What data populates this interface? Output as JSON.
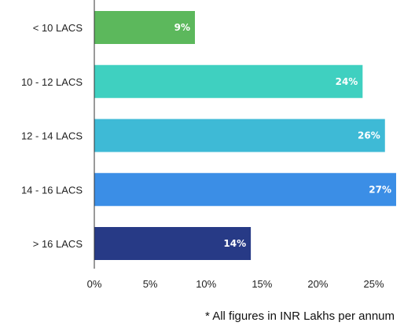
{
  "chart_data": {
    "type": "bar",
    "orientation": "horizontal",
    "categories": [
      "< 10 LACS",
      "10 - 12 LACS",
      "12 - 14 LACS",
      "14 - 16 LACS",
      "> 16 LACS"
    ],
    "values": [
      9,
      24,
      26,
      27,
      14
    ],
    "data_labels": [
      "9%",
      "24%",
      "26%",
      "27%",
      "14%"
    ],
    "colors": [
      "#5cb85c",
      "#3fd0c0",
      "#3ebad6",
      "#3b8ee6",
      "#273a86"
    ],
    "x_ticks": [
      0,
      5,
      10,
      15,
      20,
      25
    ],
    "x_tick_labels": [
      "0%",
      "5%",
      "10%",
      "15%",
      "20%",
      "25%"
    ],
    "xlim": [
      0,
      27
    ],
    "grid": false,
    "legend": "none"
  },
  "footnote": "* All figures in INR Lakhs per annum"
}
